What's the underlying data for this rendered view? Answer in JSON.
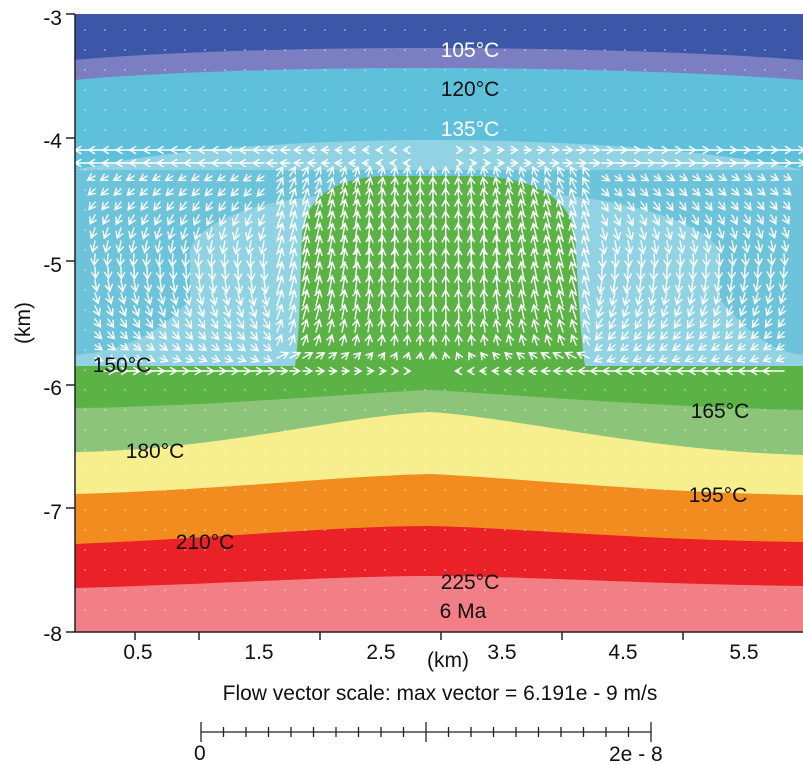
{
  "chart_data": {
    "type": "heatmap",
    "title": "",
    "xlabel": "(km)",
    "ylabel": "(km)",
    "xlim": [
      0,
      6
    ],
    "ylim": [
      -8,
      -3
    ],
    "x_ticks": [
      0.5,
      1.5,
      2.5,
      3.5,
      4.5,
      5.5
    ],
    "x_tick_labels": [
      "0.5",
      "1.5",
      "2.5",
      "3.5",
      "4.5",
      "5.5"
    ],
    "y_ticks": [
      -3,
      -4,
      -5,
      -6,
      -7,
      -8
    ],
    "y_tick_labels": [
      "-3",
      "-4",
      "-5",
      "-6",
      "-7",
      "-8"
    ],
    "time_label": "6 Ma",
    "bands": [
      {
        "name": "105",
        "color": "#3c57a8"
      },
      {
        "name": "120",
        "color": "#7b7fc2"
      },
      {
        "name": "135",
        "color": "#5fc0dc"
      },
      {
        "name": "150",
        "color": "#91d3e3"
      },
      {
        "name": "inner",
        "color": "#6cc3da"
      },
      {
        "name": "plume",
        "color": "#5bb245"
      },
      {
        "name": "165",
        "color": "#8cc57a"
      },
      {
        "name": "180",
        "color": "#f7ef8e"
      },
      {
        "name": "195",
        "color": "#f28c1f"
      },
      {
        "name": "210",
        "color": "#ea2227"
      },
      {
        "name": "225",
        "color": "#f37f86"
      }
    ],
    "isotherm_labels": [
      {
        "text": "105°C",
        "x": 3.0,
        "y": -3.26
      },
      {
        "text": "120°C",
        "x": 3.0,
        "y": -3.6
      },
      {
        "text": "135°C",
        "x": 3.0,
        "y": -3.93
      },
      {
        "text": "150°C",
        "x": 0.4,
        "y": -5.83
      },
      {
        "text": "165°C",
        "x": 5.05,
        "y": -6.18
      },
      {
        "text": "180°C",
        "x": 0.68,
        "y": -6.5
      },
      {
        "text": "195°C",
        "x": 5.1,
        "y": -6.93
      },
      {
        "text": "210°C",
        "x": 1.05,
        "y": -7.28
      },
      {
        "text": "225°C",
        "x": 3.0,
        "y": -7.6
      }
    ],
    "flow_scale": {
      "caption": "Flow vector scale: max vector = 6.191e - 9 m/s",
      "min_label": "0",
      "max_label": "2e - 8",
      "max_velocity": 6.191e-09,
      "scale_max": 2e-08
    }
  }
}
